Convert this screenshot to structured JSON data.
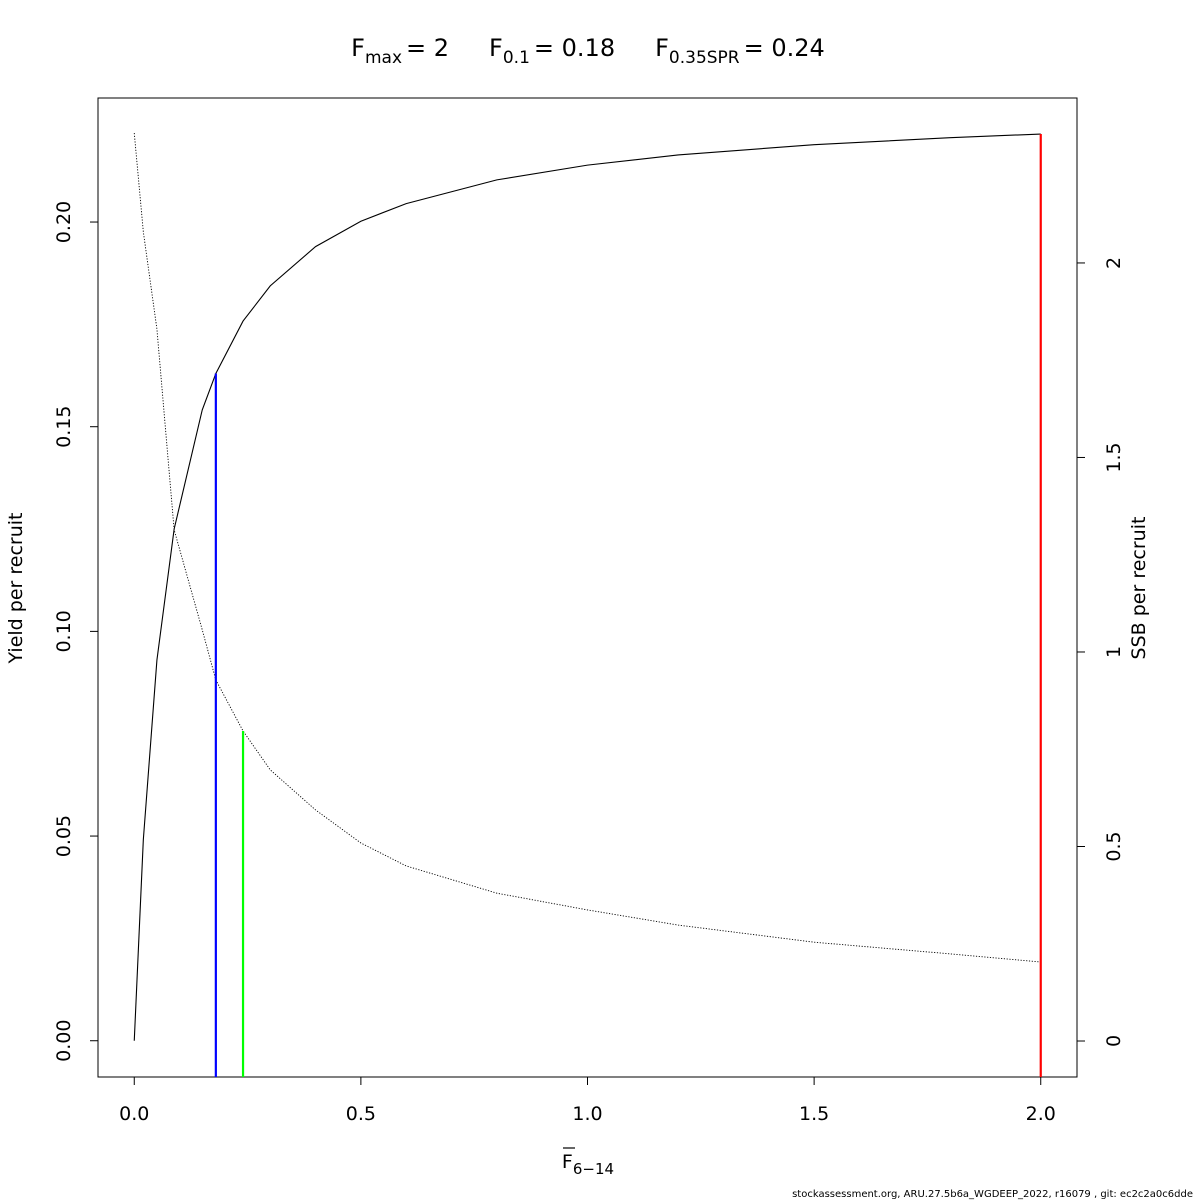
{
  "chart_data": {
    "type": "line",
    "title": [
      {
        "symbol": "F",
        "subscript": "max",
        "text": "= 2"
      },
      {
        "symbol": "F",
        "subscript": "0.1",
        "text": "= 0.18"
      },
      {
        "symbol": "F",
        "subscript": "0.35SPR",
        "text": "= 0.24"
      }
    ],
    "xlabel": {
      "symbol": "F",
      "subscript": "6−14"
    },
    "ylabel": "Yield per recruit",
    "y2label": "SSB per recruit",
    "x": [
      0,
      0.02,
      0.05,
      0.088,
      0.15,
      0.18,
      0.24,
      0.3,
      0.4,
      0.5,
      0.6,
      0.8,
      1.0,
      1.2,
      1.5,
      1.8,
      2.0
    ],
    "series": [
      {
        "color": "#000000",
        "dash": "solid",
        "axis": "y",
        "values": [
          0,
          0.0491,
          0.093,
          0.125,
          0.1541,
          0.163,
          0.1758,
          0.1844,
          0.194,
          0.2002,
          0.2045,
          0.2103,
          0.2139,
          0.2164,
          0.2189,
          0.2206,
          0.2215
        ]
      },
      {
        "color": "#000000",
        "dash": "dotted",
        "axis": "y2",
        "values": [
          2.334,
          2.08,
          1.83,
          1.314,
          1.057,
          0.928,
          0.797,
          0.697,
          0.594,
          0.509,
          0.45,
          0.38,
          0.337,
          0.298,
          0.254,
          0.224,
          0.203
        ]
      }
    ],
    "refs": [
      {
        "x": 0.18,
        "y": 0.163,
        "axis": "y",
        "color": "#0000ff"
      },
      {
        "x": 0.24,
        "y": 0.797,
        "axis": "y2",
        "color": "#00ff00"
      },
      {
        "x": 2.0,
        "y": 0.2215,
        "axis": "y",
        "color": "#ff0000"
      }
    ],
    "xlim": [
      -0.08,
      2.08
    ],
    "xticks": [
      {
        "value": 0,
        "label": "0.0"
      },
      0.5,
      {
        "value": 1,
        "label": "1.0"
      },
      1.5,
      {
        "value": 2,
        "label": "2.0"
      }
    ],
    "ylim": [
      -0.00886,
      0.2303
    ],
    "yticks": [
      {
        "value": 0,
        "label": "0.00"
      },
      0.05,
      {
        "value": 0.1,
        "label": "0.10"
      },
      0.15,
      {
        "value": 0.2,
        "label": "0.20"
      }
    ],
    "y2lim": [
      -0.0925,
      2.424
    ],
    "y2ticks": [
      0,
      0.5,
      1,
      1.5,
      2
    ],
    "grid": false,
    "footer": "stockassessment.org, ARU.27.5b6a_WGDEEP_2022, r16079 , git: ec2c2a0c6dde"
  }
}
